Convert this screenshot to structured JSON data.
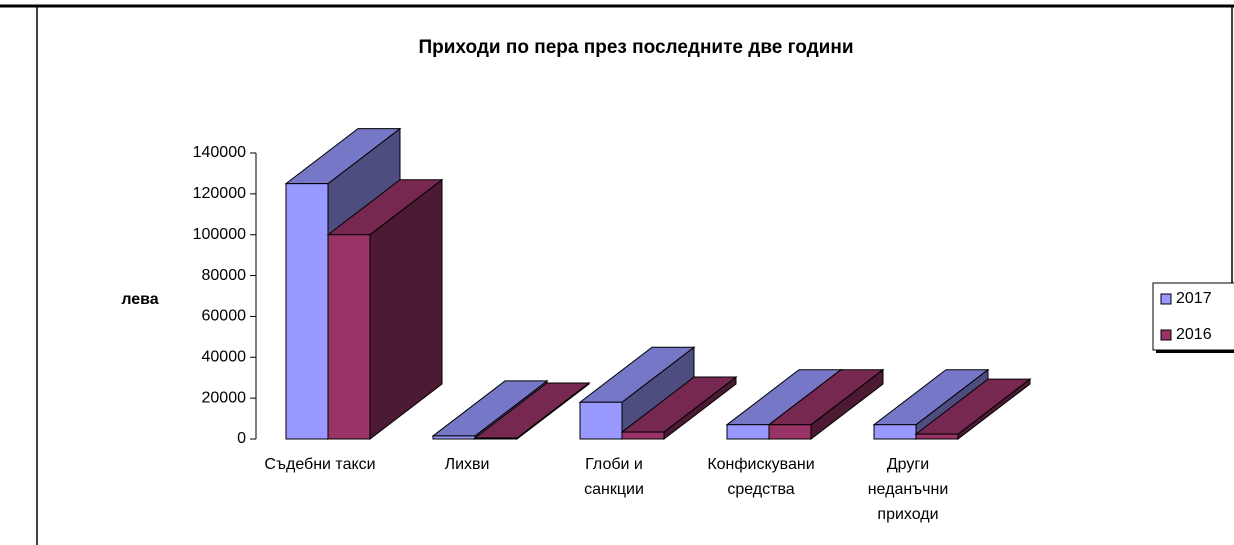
{
  "chart_data": {
    "type": "bar3d",
    "title": "Приходи по пера през последните две години",
    "y_label": "лева",
    "categories": [
      "Съдебни такси",
      "Лихви",
      "Глоби и санкции",
      "Конфискувани средства",
      "Други неданъчни приходи"
    ],
    "series": [
      {
        "name": "2017",
        "color": "#9999ff",
        "values": [
          125000,
          1500,
          18000,
          7000,
          7000
        ]
      },
      {
        "name": "2016",
        "color": "#993366",
        "values": [
          100000,
          500,
          3400,
          7000,
          2400
        ]
      }
    ],
    "ylim": [
      0,
      140000
    ],
    "yticks": [
      0,
      20000,
      40000,
      60000,
      80000,
      100000,
      120000,
      140000
    ],
    "legend": "right"
  }
}
